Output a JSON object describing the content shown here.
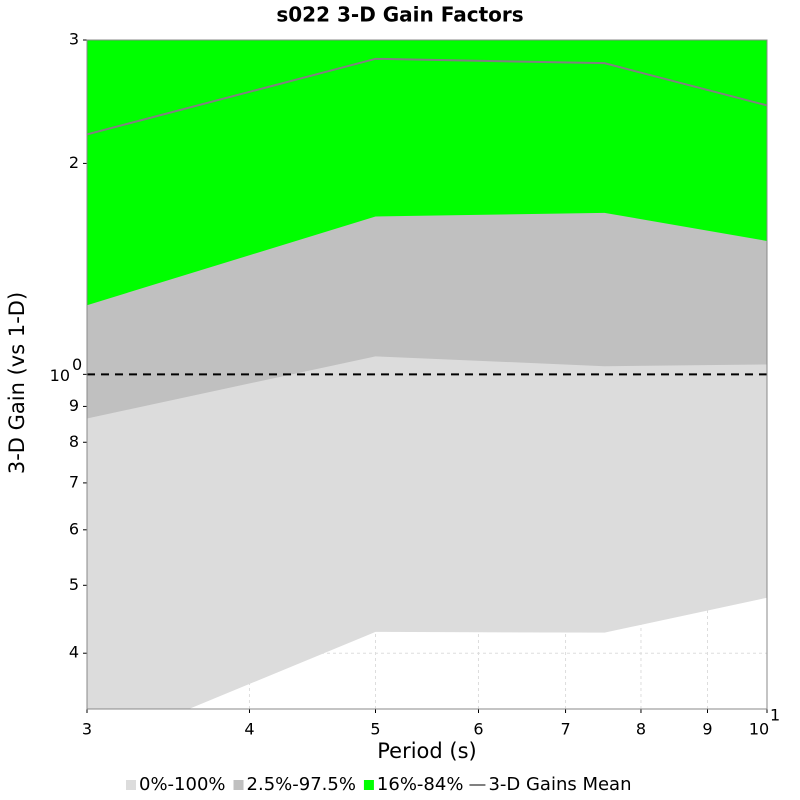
{
  "chart_data": {
    "type": "band-line",
    "title": "s022 3-D Gain Factors",
    "x_label": "Period (s)",
    "y_label": "3-D Gain (vs 1-D)",
    "x": [
      3,
      5,
      7.5,
      10
    ],
    "bands": [
      {
        "name": "0%-100%",
        "color": "#dcdcdc",
        "lower": [
          0.29,
          0.429,
          0.428,
          0.48
        ],
        "upper": [
          3.6,
          4.5,
          4.5,
          4.0
        ]
      },
      {
        "name": "2.5%-97.5%",
        "color": "#c0c0c0",
        "lower": [
          0.865,
          1.061,
          1.027,
          1.033
        ],
        "upper": [
          3.4,
          4.2,
          4.2,
          3.7
        ]
      },
      {
        "name": "16%-84%",
        "color": "#00ff00",
        "lower": [
          1.255,
          1.68,
          1.7,
          1.55
        ],
        "upper": [
          3.2,
          4.0,
          4.0,
          3.5
        ]
      }
    ],
    "series": [
      {
        "name": "3-D Gains Mean",
        "color": "#808080",
        "values": [
          2.2,
          2.82,
          2.78,
          2.42
        ]
      }
    ],
    "reference_line": 1,
    "log_x": true,
    "log_y": true,
    "grid": true,
    "xlim": [
      3,
      10
    ],
    "ylim": [
      0.333,
      3
    ],
    "xticks": [
      3,
      4,
      5,
      6,
      7,
      8,
      9,
      {
        "value": 10,
        "label": "10",
        "exponent": "1"
      }
    ],
    "yticks": [
      3,
      2,
      {
        "value": 1,
        "label": "10",
        "exponent": "0"
      },
      {
        "value": 0.9,
        "label": "9"
      },
      {
        "value": 0.8,
        "label": "8"
      },
      {
        "value": 0.7,
        "label": "7"
      },
      {
        "value": 0.6,
        "label": "6"
      },
      {
        "value": 0.5,
        "label": "5"
      },
      {
        "value": 0.4,
        "label": "4"
      }
    ],
    "legend": "bottom"
  }
}
